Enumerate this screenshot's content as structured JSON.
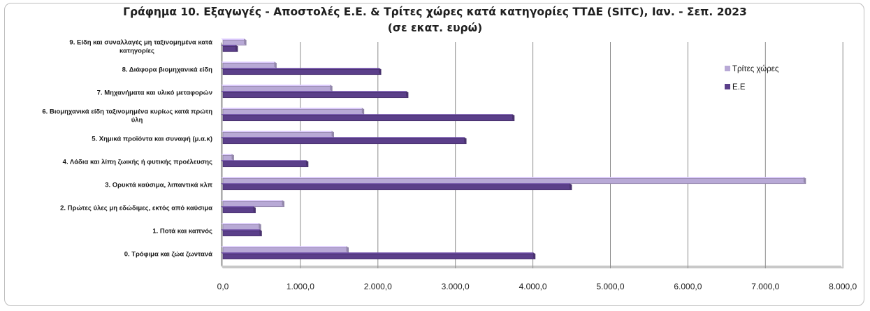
{
  "chart_data": {
    "type": "bar",
    "orientation": "horizontal",
    "title_line1": "Γράφημα 10. Εξαγωγές - Αποστολές Ε.Ε. & Τρίτες χώρες κατά κατηγορίες ΤΤΔΕ (SITC), Ιαν. - Σεπ. 2023",
    "title_line2": "(σε εκατ. ευρώ)",
    "categories": [
      "0. Τρόφιμα και ζώα ζωντανά",
      "1. Ποτά και καπνός",
      "2. Πρώτες ύλες μη εδώδιμες, εκτός από καύσιμα",
      "3. Ορυκτά καύσιμα, λιπαντικά κλπ",
      "4. Λάδια και λίπη ζωικής ή φυτικής προέλευσης",
      "5. Χημικά προϊόντα και συναφή (μ.α.κ)",
      "6. Βιομηχανικά είδη ταξινομημένα κυρίως κατά πρώτη ύλη",
      "7. Μηχανήματα και υλικό μεταφορών",
      "8. Διάφορα βιομηχανικά είδη",
      "9. Είδη και συναλλαγές μη ταξινομημένα κατά κατηγορίες"
    ],
    "series": [
      {
        "name": "Τρίτες χώρες",
        "color": "#b8a9d6",
        "values": [
          1620,
          490,
          790,
          7520,
          140,
          1430,
          1820,
          1410,
          690,
          300
        ]
      },
      {
        "name": "Ε.Ε",
        "color": "#5b3f8a",
        "values": [
          4030,
          500,
          420,
          4500,
          1100,
          3140,
          3760,
          2390,
          2040,
          190
        ]
      }
    ],
    "legend_order": [
      "Τρίτες χώρες",
      "Ε.Ε"
    ],
    "legend_position": "right",
    "x_ticks": [
      "0,0",
      "1.000,0",
      "2.000,0",
      "3.000,0",
      "4.000,0",
      "5.000,0",
      "6.000,0",
      "7.000,0",
      "8.000,0"
    ],
    "xlim": [
      0,
      8000
    ],
    "grid": true
  }
}
